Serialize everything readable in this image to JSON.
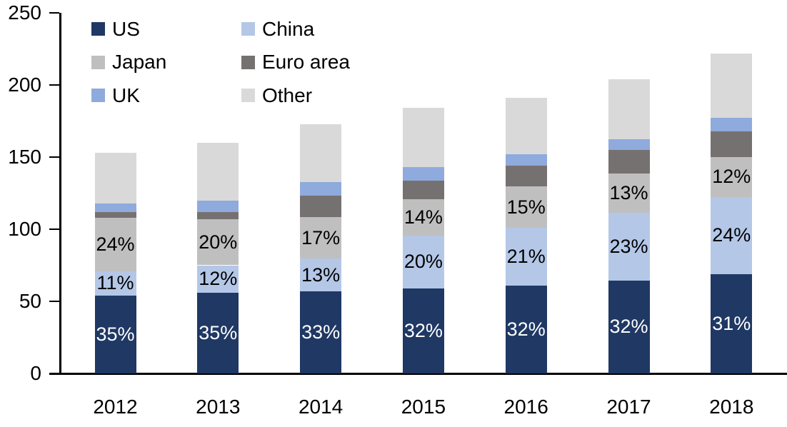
{
  "chart_data": {
    "type": "bar",
    "stacked": true,
    "title": "",
    "categories": [
      "2012",
      "2013",
      "2014",
      "2015",
      "2016",
      "2017",
      "2018"
    ],
    "totals": [
      153,
      160,
      173,
      184,
      191,
      204,
      222
    ],
    "series": [
      {
        "name": "US",
        "color": "#1F3864",
        "values": [
          54,
          56,
          57,
          59,
          61,
          64.5,
          69
        ],
        "labels": [
          "35%",
          "35%",
          "33%",
          "32%",
          "32%",
          "32%",
          "31%"
        ],
        "label_color": "#FFFFFF"
      },
      {
        "name": "China",
        "color": "#B4C7E7",
        "values": [
          17,
          19,
          22.5,
          36.5,
          40,
          47,
          53.5
        ],
        "labels": [
          "11%",
          "12%",
          "13%",
          "20%",
          "21%",
          "23%",
          "24%"
        ],
        "label_color": "#000000"
      },
      {
        "name": "Japan",
        "color": "#BFBFBF",
        "values": [
          37,
          32,
          29,
          25.5,
          28.5,
          27,
          27.5
        ],
        "labels": [
          "24%",
          "20%",
          "17%",
          "14%",
          "15%",
          "13%",
          "12%"
        ],
        "label_color": "#000000"
      },
      {
        "name": "Euro area",
        "color": "#767171",
        "values": [
          4,
          5,
          15,
          12.5,
          14.5,
          16.5,
          18
        ],
        "labels": null,
        "label_color": null
      },
      {
        "name": "UK",
        "color": "#8FAADC",
        "values": [
          6,
          8,
          9,
          9.5,
          8,
          7.5,
          9
        ],
        "labels": null,
        "label_color": null
      },
      {
        "name": "Other",
        "color": "#D9D9D9",
        "values": [
          35,
          40,
          40.5,
          41,
          39,
          41.5,
          45
        ],
        "labels": null,
        "label_color": null
      }
    ],
    "y_axis": {
      "min": 0,
      "max": 250,
      "step": 50,
      "tick_labels": [
        "0",
        "50",
        "100",
        "150",
        "200",
        "250"
      ]
    },
    "x_axis": {
      "tick_labels": [
        "2012",
        "2013",
        "2014",
        "2015",
        "2016",
        "2017",
        "2018"
      ]
    },
    "legend": {
      "position": "top-left",
      "columns": 2,
      "items": [
        {
          "label": "US",
          "color": "#1F3864"
        },
        {
          "label": "China",
          "color": "#B4C7E7"
        },
        {
          "label": "Japan",
          "color": "#BFBFBF"
        },
        {
          "label": "Euro area",
          "color": "#767171"
        },
        {
          "label": "UK",
          "color": "#8FAADC"
        },
        {
          "label": "Other",
          "color": "#D9D9D9"
        }
      ]
    },
    "axis_color": "#000000",
    "text_color": "#000000"
  }
}
